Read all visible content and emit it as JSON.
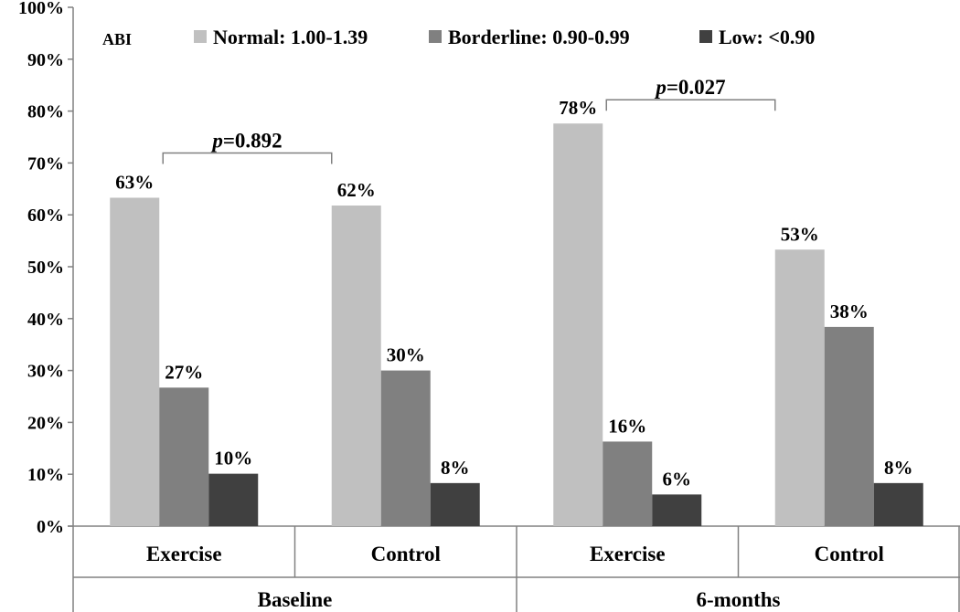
{
  "chart_data": {
    "type": "bar",
    "legend_title": "ABI",
    "legend_position": "top",
    "ylim": [
      0,
      100
    ],
    "yticks": [
      0,
      10,
      20,
      30,
      40,
      50,
      60,
      70,
      80,
      90,
      100
    ],
    "tick_format": "%",
    "groups": [
      {
        "name": "Baseline",
        "categories": [
          "Exercise",
          "Control"
        ]
      },
      {
        "name": "6-months",
        "categories": [
          "Exercise",
          "Control"
        ]
      }
    ],
    "categories": [
      "Exercise",
      "Control",
      "Exercise",
      "Control"
    ],
    "series": [
      {
        "name": "Normal: 1.00-1.39",
        "color": "#c0c0c0",
        "values": [
          63.3,
          61.8,
          77.6,
          53.3
        ],
        "labels": [
          "63%",
          "62%",
          "78%",
          "53%"
        ]
      },
      {
        "name": "Borderline: 0.90-0.99",
        "color": "#808080",
        "values": [
          26.7,
          30.0,
          16.3,
          38.4
        ],
        "labels": [
          "27%",
          "30%",
          "16%",
          "38%"
        ]
      },
      {
        "name": "Low: <0.90",
        "color": "#404040",
        "values": [
          10.1,
          8.3,
          6.1,
          8.3
        ],
        "labels": [
          "10%",
          "8%",
          "6%",
          "8%"
        ]
      }
    ],
    "annotations": [
      {
        "prefix": "p",
        "value": "=0.892",
        "group": "Baseline"
      },
      {
        "prefix": "p",
        "value": "=0.027",
        "group": "6-months"
      }
    ]
  }
}
